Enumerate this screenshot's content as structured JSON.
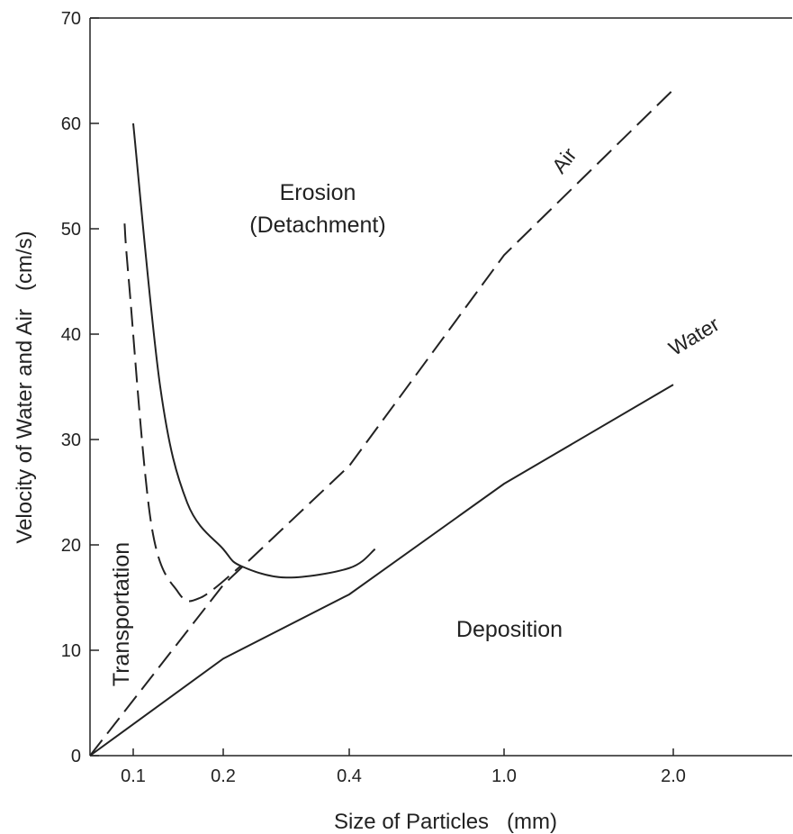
{
  "chart_data": {
    "type": "line",
    "xlabel": "Size of Particles   (mm)",
    "ylabel": "Velocity of Water and Air   (cm/s)",
    "x_scale": "nonlinear (tick spacing not proportional)",
    "x_ticks": [
      0.1,
      0.2,
      0.4,
      1.0,
      2.0
    ],
    "x_tick_labels": [
      "0.1",
      "0.2",
      "0.4",
      "1.0",
      "2.0"
    ],
    "y_ticks": [
      0,
      10,
      20,
      30,
      40,
      50,
      60,
      70
    ],
    "y_tick_labels": [
      "0",
      "10",
      "20",
      "30",
      "40",
      "50",
      "60",
      "70"
    ],
    "ylim": [
      0,
      70
    ],
    "grid": false,
    "legend": "none (curves labeled directly)",
    "series": [
      {
        "name": "Air",
        "style": "dashed",
        "x": [
          0.0,
          0.2,
          0.4,
          1.0,
          2.0
        ],
        "y": [
          0,
          16.2,
          27.5,
          47.5,
          63.2
        ]
      },
      {
        "name": "Water",
        "style": "solid",
        "x": [
          0.0,
          0.2,
          0.4,
          1.0,
          2.0
        ],
        "y": [
          0,
          9.2,
          15.3,
          25.8,
          35.2
        ]
      },
      {
        "style": "solid",
        "x": [
          0.1,
          0.13,
          0.16,
          0.2,
          0.228,
          0.3,
          0.4,
          0.5
        ],
        "y": [
          60,
          35,
          24,
          19.6,
          18,
          16.9,
          17.8,
          19.6
        ]
      },
      {
        "style": "dashed",
        "x": [
          0.08,
          0.09,
          0.12,
          0.15,
          0.175,
          0.228
        ],
        "y": [
          50.5,
          45,
          22,
          15.5,
          15,
          18
        ]
      }
    ],
    "region_labels": {
      "erosion": [
        "Erosion",
        "(Detachment)"
      ],
      "transportation": "Transportation",
      "deposition": "Deposition"
    },
    "curve_labels": {
      "air": "Air",
      "water": "Water"
    }
  }
}
